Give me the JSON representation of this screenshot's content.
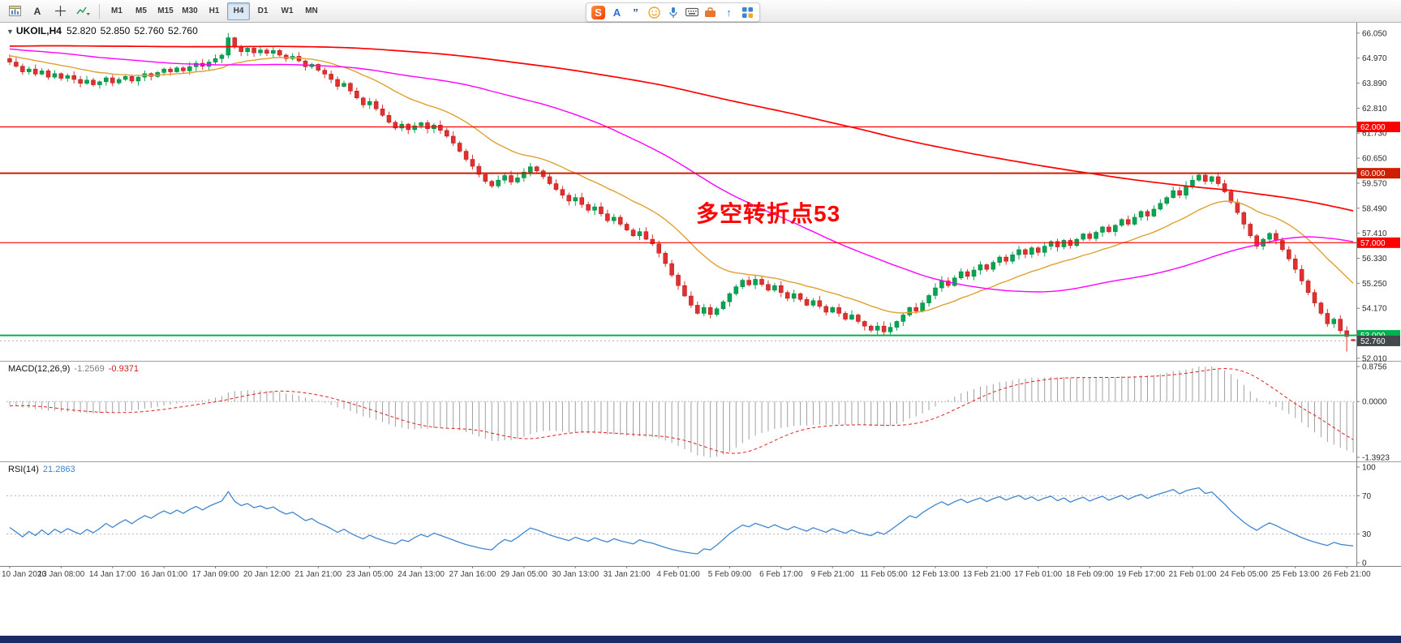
{
  "window": {
    "taskbar_color": "#1b2b66"
  },
  "toolbar": {
    "left_tools": [
      {
        "name": "new-chart",
        "glyph": ""
      },
      {
        "name": "text-label",
        "glyph": "A"
      },
      {
        "name": "crosshair",
        "glyph": ""
      },
      {
        "name": "indicators",
        "glyph": ""
      }
    ],
    "timeframes": [
      {
        "label": "M1",
        "active": false
      },
      {
        "label": "M5",
        "active": false
      },
      {
        "label": "M15",
        "active": false
      },
      {
        "label": "M30",
        "active": false
      },
      {
        "label": "H1",
        "active": false
      },
      {
        "label": "H4",
        "active": true
      },
      {
        "label": "D1",
        "active": false
      },
      {
        "label": "W1",
        "active": false
      },
      {
        "label": "MN",
        "active": false
      }
    ],
    "ime_icons": [
      "sogou-logo",
      "input-mode",
      "punctuation",
      "emoji",
      "voice-input",
      "soft-keyboard",
      "toolbox",
      "expand",
      "apps-grid"
    ]
  },
  "symbol_line": {
    "expander": "▼",
    "symbol": "UKOIL,H4",
    "open": "52.820",
    "high": "52.850",
    "low": "52.760",
    "close": "52.760"
  },
  "annotation": {
    "text": "多空转折点53",
    "color": "#ff0000"
  },
  "price_axis": {
    "ticks": [
      "66.050",
      "64.970",
      "63.890",
      "62.810",
      "61.730",
      "60.650",
      "59.570",
      "58.490",
      "57.410",
      "56.330",
      "55.250",
      "54.170",
      "53.090",
      "52.010"
    ]
  },
  "time_axis": {
    "labels": [
      "10 Jan 2020",
      "13 Jan 08:00",
      "14 Jan 17:00",
      "16 Jan 01:00",
      "17 Jan 09:00",
      "20 Jan 12:00",
      "21 Jan 21:00",
      "23 Jan 05:00",
      "24 Jan 13:00",
      "27 Jan 16:00",
      "29 Jan 05:00",
      "30 Jan 13:00",
      "31 Jan 21:00",
      "4 Feb 01:00",
      "5 Feb 09:00",
      "6 Feb 17:00",
      "9 Feb 21:00",
      "11 Feb 05:00",
      "12 Feb 13:00",
      "13 Feb 21:00",
      "17 Feb 01:00",
      "18 Feb 09:00",
      "19 Feb 17:00",
      "21 Feb 01:00",
      "24 Feb 05:00",
      "25 Feb 13:00",
      "26 Feb 21:00"
    ]
  },
  "hlines": [
    {
      "price": 62.0,
      "label": "62.000",
      "color": "#ff0000",
      "width": 1.2
    },
    {
      "price": 60.0,
      "label": "60.000",
      "color": "#cf1d00",
      "width": 2
    },
    {
      "price": 57.0,
      "label": "57.000",
      "color": "#ff0000",
      "width": 1.2
    },
    {
      "price": 53.0,
      "label": "53.000",
      "color": "#00b050",
      "width": 2
    }
  ],
  "current_price": {
    "label": "52.760",
    "value": 52.76,
    "line_color": "#aab0b6",
    "tag_color": "#43484d"
  },
  "macd_panel": {
    "title": "MACD(12,26,9)",
    "value1": "-1.2569",
    "value2": "-0.9371",
    "ticks": [
      "0.8756",
      "0.0000",
      "-1.3923"
    ]
  },
  "rsi_panel": {
    "title": "RSI(14)",
    "value": "21.2863",
    "ticks": [
      "100",
      "70",
      "30",
      "0"
    ],
    "levels": [
      70,
      30
    ]
  },
  "chart_data": {
    "type": "candlestick",
    "symbol": "UKOIL",
    "timeframe": "H4",
    "title": "UKOIL H4 with MACD(12,26,9) and RSI(14)",
    "price_range": [
      51.9,
      66.5
    ],
    "colors": {
      "up": "#00a651",
      "up_stroke": "#067a38",
      "down": "#e03131",
      "down_stroke": "#b01212",
      "ma_fast": "#e0a030",
      "ma_mid": "#ff00ff",
      "ma_long": "#ff0000",
      "macd_hist": "#a0a0a0",
      "macd_signal": "#e02020",
      "rsi": "#3f86cf",
      "grid_text": "#2b2b2b"
    },
    "moving_averages": [
      {
        "name": "fast",
        "type": "EMA",
        "period": 20,
        "color": "#e0a030"
      },
      {
        "name": "mid",
        "type": "SMA",
        "period": 60,
        "color": "#ff00ff"
      },
      {
        "name": "long",
        "type": "SMA",
        "period": 185,
        "color": "#ff0000"
      }
    ],
    "macd": {
      "fast": 12,
      "slow": 26,
      "signal": 9
    },
    "rsi": {
      "period": 14
    },
    "candles": {
      "first_open": 64.95,
      "closes": [
        64.8,
        64.62,
        64.38,
        64.5,
        64.28,
        64.42,
        64.15,
        64.3,
        64.1,
        64.22,
        64.05,
        63.88,
        64.02,
        63.82,
        63.95,
        64.12,
        63.9,
        64.05,
        64.18,
        63.98,
        64.15,
        64.3,
        64.18,
        64.35,
        64.5,
        64.38,
        64.55,
        64.42,
        64.6,
        64.75,
        64.62,
        64.8,
        64.95,
        65.1,
        65.85,
        65.45,
        65.25,
        65.4,
        65.2,
        65.32,
        65.18,
        65.3,
        65.1,
        64.95,
        65.05,
        64.85,
        64.6,
        64.7,
        64.45,
        64.28,
        64.05,
        63.75,
        63.88,
        63.55,
        63.25,
        62.95,
        63.1,
        62.78,
        62.5,
        62.2,
        61.95,
        62.12,
        61.88,
        62.05,
        62.18,
        61.92,
        62.08,
        61.85,
        61.6,
        61.3,
        60.95,
        60.6,
        60.3,
        59.95,
        59.65,
        59.45,
        59.7,
        59.9,
        59.62,
        59.8,
        60.05,
        60.28,
        60.1,
        59.85,
        59.55,
        59.3,
        59.05,
        58.8,
        58.95,
        58.65,
        58.4,
        58.55,
        58.25,
        57.95,
        58.1,
        57.8,
        57.55,
        57.3,
        57.48,
        57.15,
        56.95,
        56.55,
        56.1,
        55.6,
        55.15,
        54.7,
        54.3,
        53.95,
        54.2,
        53.9,
        54.15,
        54.45,
        54.8,
        55.1,
        55.38,
        55.18,
        55.42,
        55.2,
        54.95,
        55.15,
        54.85,
        54.6,
        54.8,
        54.55,
        54.3,
        54.5,
        54.25,
        54.0,
        54.2,
        53.95,
        53.7,
        53.88,
        53.6,
        53.4,
        53.22,
        53.4,
        53.15,
        53.35,
        53.6,
        53.88,
        54.2,
        54.05,
        54.4,
        54.72,
        55.05,
        55.35,
        55.15,
        55.48,
        55.75,
        55.55,
        55.82,
        56.05,
        55.85,
        56.15,
        56.38,
        56.2,
        56.48,
        56.7,
        56.5,
        56.78,
        56.58,
        56.85,
        57.05,
        56.82,
        57.1,
        56.88,
        57.15,
        57.38,
        57.18,
        57.45,
        57.68,
        57.48,
        57.75,
        58.0,
        57.8,
        58.1,
        58.35,
        58.15,
        58.45,
        58.7,
        58.95,
        59.25,
        59.05,
        59.45,
        59.7,
        59.92,
        59.65,
        59.85,
        59.55,
        59.2,
        58.75,
        58.3,
        57.8,
        57.3,
        56.85,
        57.15,
        57.4,
        57.1,
        56.7,
        56.3,
        55.85,
        55.35,
        54.85,
        54.4,
        53.95,
        53.5,
        53.7,
        53.2,
        52.95,
        52.76
      ],
      "overrides": {
        "34": {
          "h": 66.05
        },
        "136": {
          "l": 53.02
        },
        "208": {
          "l": 52.3
        },
        "209": {
          "o": 52.82,
          "h": 52.85,
          "l": 52.76,
          "c": 52.76
        }
      }
    }
  }
}
